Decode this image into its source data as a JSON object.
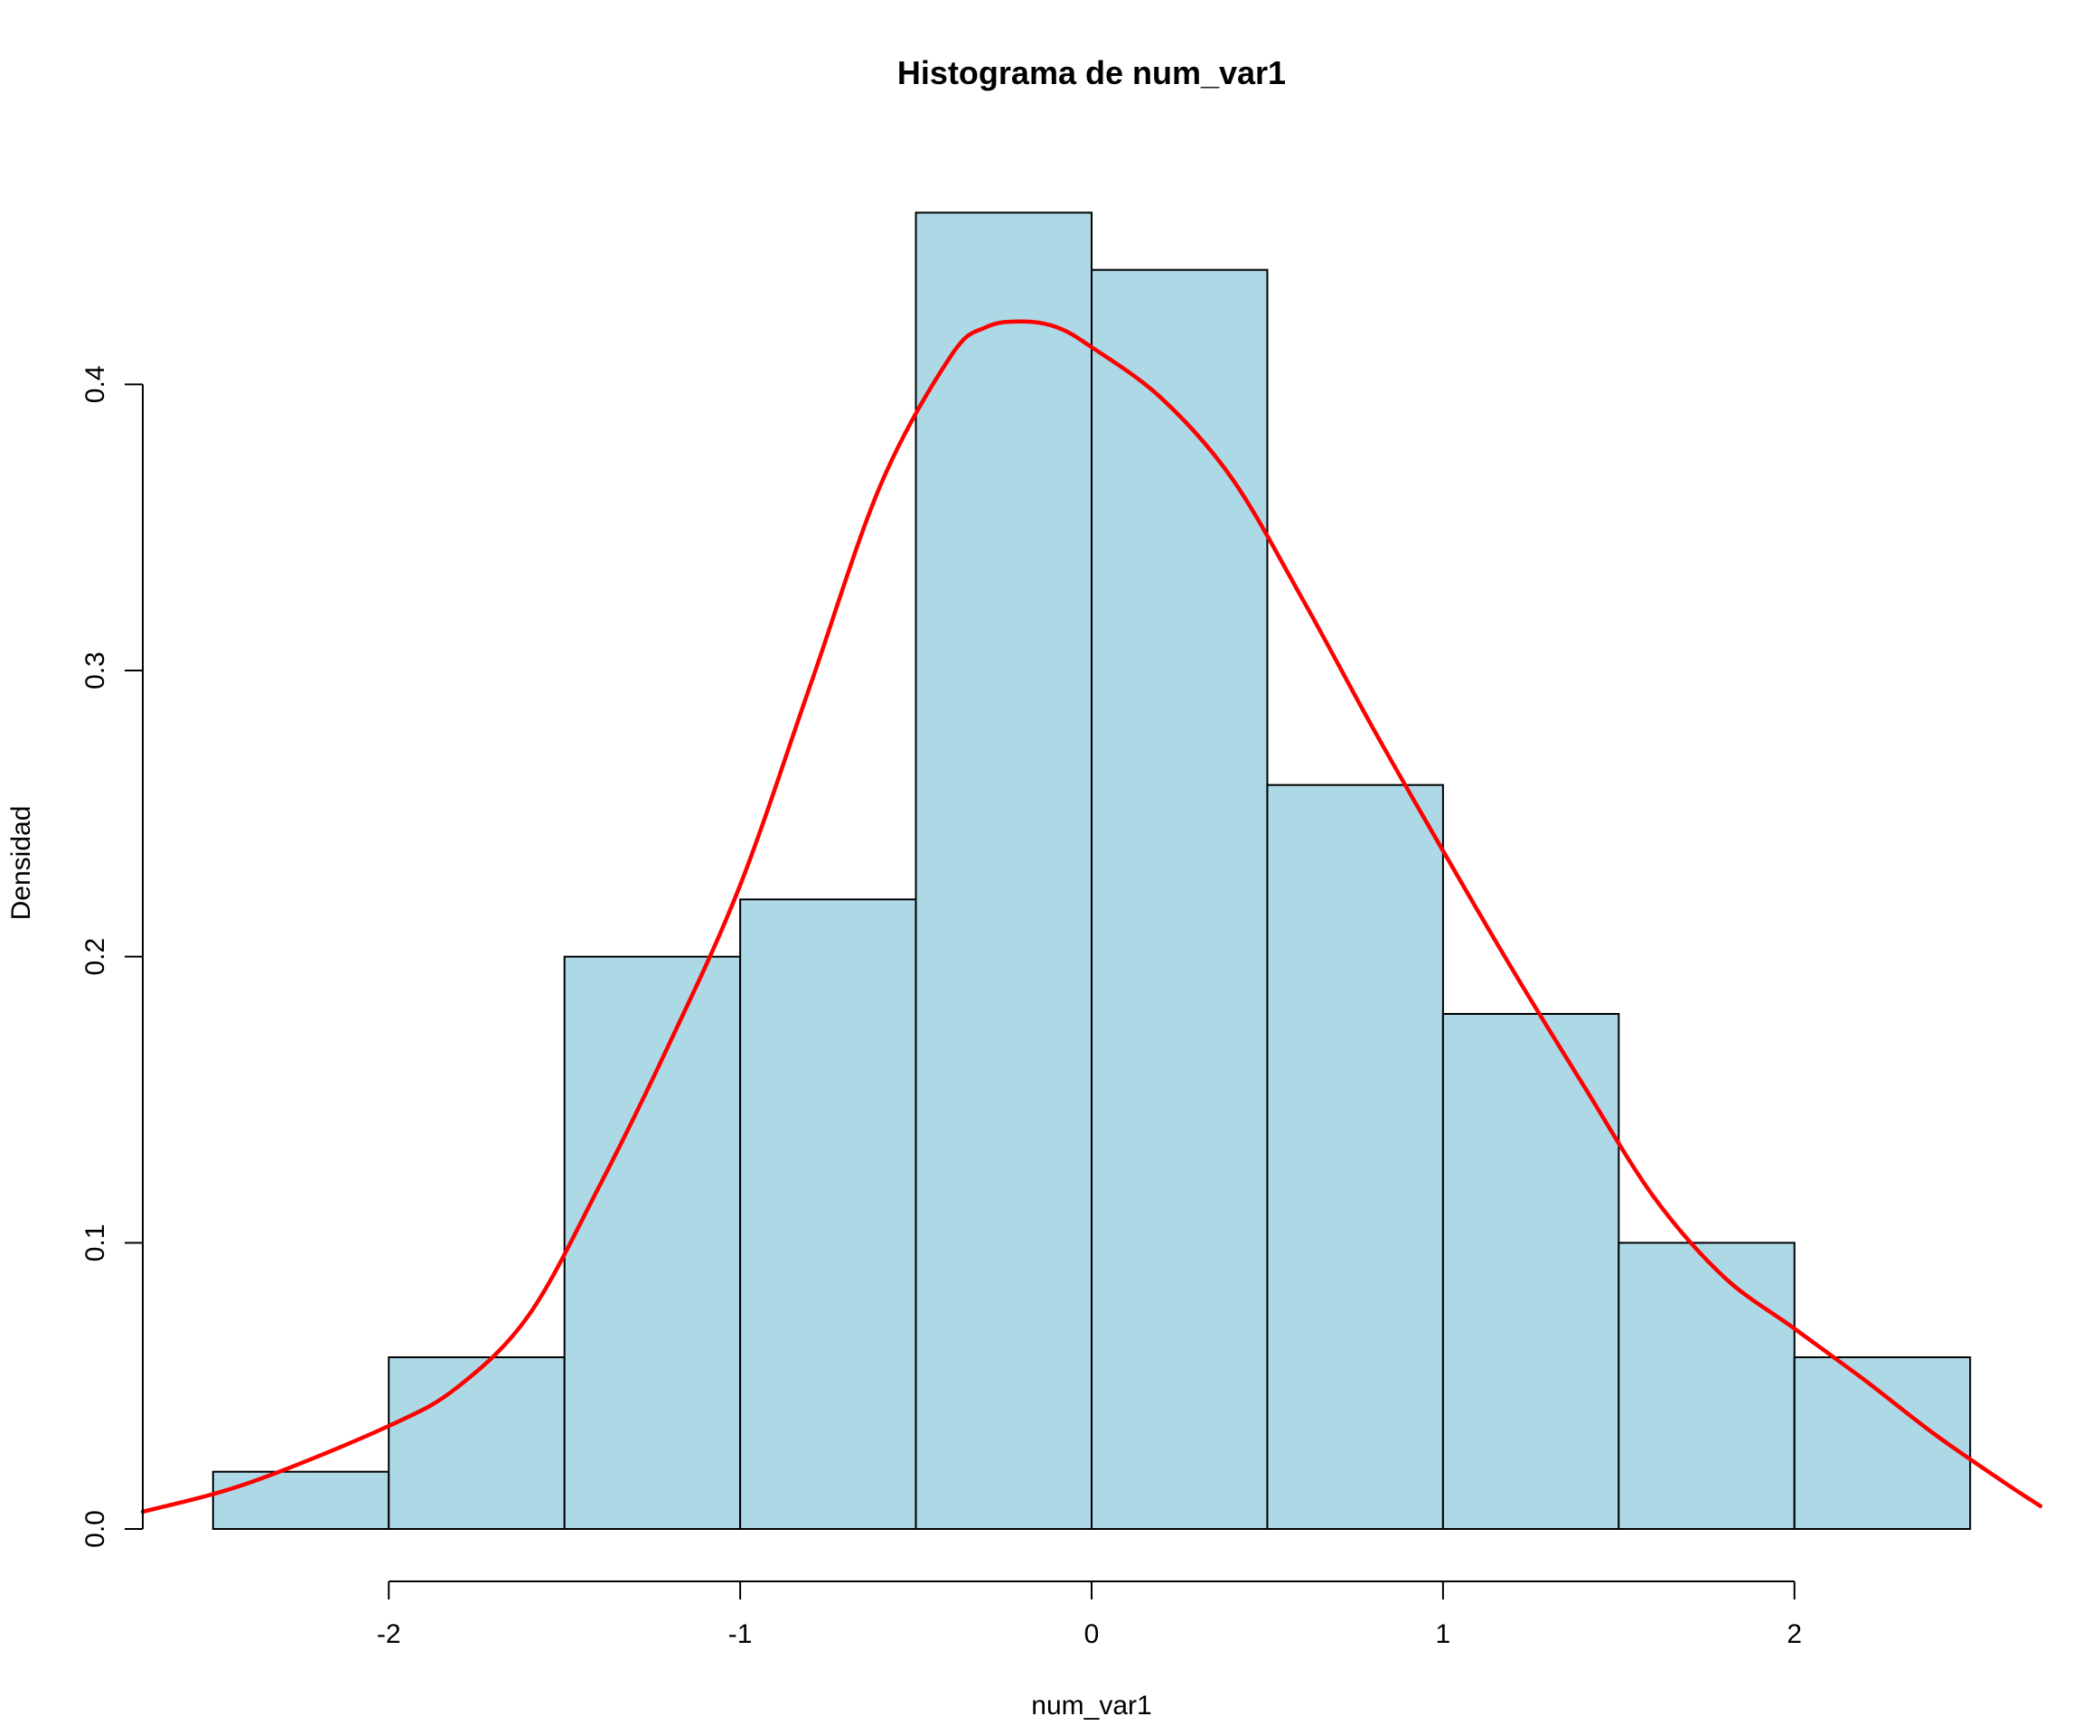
{
  "chart_data": {
    "type": "bar",
    "subtype": "histogram",
    "title": "Histograma de num_var1",
    "xlabel": "num_var1",
    "ylabel": "Densidad",
    "xlim": [
      -2.7,
      2.7
    ],
    "ylim": [
      0,
      0.48
    ],
    "x_ticks": [
      -2,
      -1,
      0,
      1,
      2
    ],
    "x_tick_labels": [
      "-2",
      "-1",
      "0",
      "1",
      "2"
    ],
    "y_ticks": [
      0.0,
      0.1,
      0.2,
      0.3,
      0.4
    ],
    "y_tick_labels": [
      "0.0",
      "0.1",
      "0.2",
      "0.3",
      "0.4"
    ],
    "grid": false,
    "bins": [
      {
        "start": -2.5,
        "end": -2.0,
        "density": 0.02
      },
      {
        "start": -2.0,
        "end": -1.5,
        "density": 0.06
      },
      {
        "start": -1.5,
        "end": -1.0,
        "density": 0.2
      },
      {
        "start": -1.0,
        "end": -0.5,
        "density": 0.22
      },
      {
        "start": -0.5,
        "end": 0.0,
        "density": 0.46
      },
      {
        "start": 0.0,
        "end": 0.5,
        "density": 0.44
      },
      {
        "start": 0.5,
        "end": 1.0,
        "density": 0.26
      },
      {
        "start": 1.0,
        "end": 1.5,
        "density": 0.18
      },
      {
        "start": 1.5,
        "end": 2.0,
        "density": 0.1
      },
      {
        "start": 2.0,
        "end": 2.5,
        "density": 0.06
      }
    ],
    "density_curve": {
      "x": [
        -2.7,
        -2.4,
        -2.0,
        -1.8,
        -1.6,
        -1.4,
        -1.2,
        -1.0,
        -0.8,
        -0.6,
        -0.4,
        -0.3,
        -0.2,
        -0.1,
        0.0,
        0.2,
        0.4,
        0.6,
        0.8,
        1.0,
        1.2,
        1.4,
        1.6,
        1.8,
        2.0,
        2.2,
        2.4,
        2.6,
        2.7
      ],
      "y": [
        0.006,
        0.016,
        0.036,
        0.05,
        0.075,
        0.12,
        0.17,
        0.225,
        0.295,
        0.365,
        0.41,
        0.42,
        0.422,
        0.42,
        0.413,
        0.395,
        0.367,
        0.325,
        0.28,
        0.237,
        0.195,
        0.155,
        0.116,
        0.088,
        0.07,
        0.052,
        0.033,
        0.016,
        0.008
      ]
    },
    "colors": {
      "bar_fill": "#add8e6",
      "bar_border": "#000000",
      "density_line": "#ff0000"
    }
  }
}
